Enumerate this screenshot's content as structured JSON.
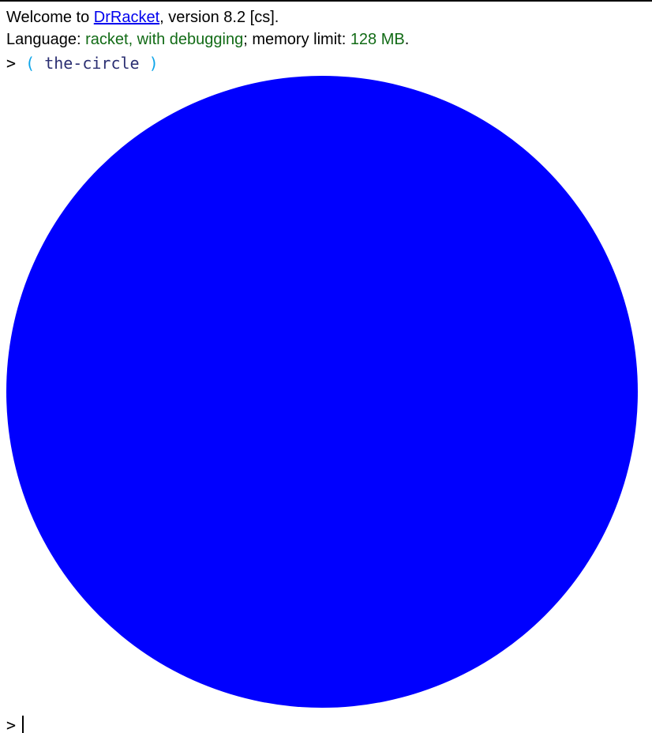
{
  "welcome": {
    "prefix": "Welcome to ",
    "link_text": "DrRacket",
    "suffix": ", version 8.2 [cs]."
  },
  "language_line": {
    "label": "Language: ",
    "language": "racket, with debugging",
    "separator": "; memory limit: ",
    "memory": "128 MB",
    "end": "."
  },
  "interaction": {
    "prompt": ">",
    "open_paren": "(",
    "expression": "the-circle",
    "close_paren": ")"
  },
  "result": {
    "shape": "circle",
    "color": "#0000ff"
  },
  "next_prompt": {
    "prompt": ">"
  },
  "colors": {
    "link": "#0000ee",
    "language_green": "#126b16",
    "paren": "#0ea5e9",
    "identifier": "#2b2f72"
  }
}
